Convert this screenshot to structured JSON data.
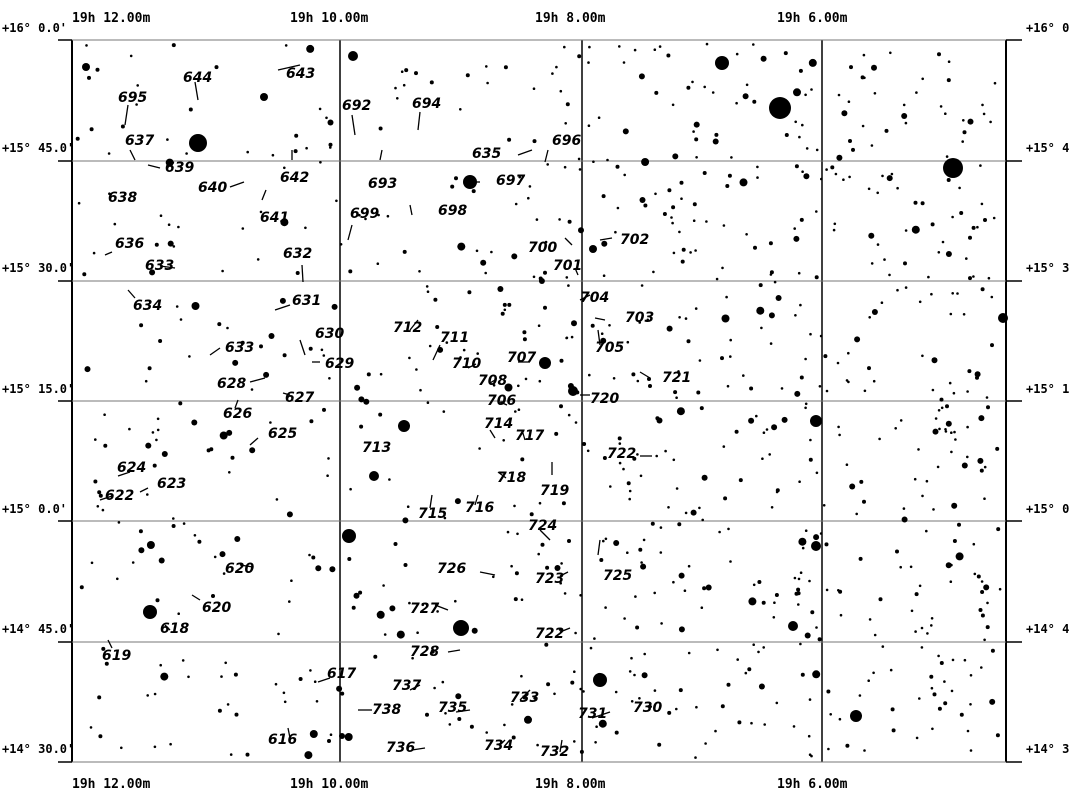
{
  "chart": {
    "type": "star-chart",
    "ra_labels": [
      "19h 12.00m",
      "19h 10.00m",
      "19h 8.00m",
      "19h 6.00m"
    ],
    "dec_labels": [
      "+16° 0.0'",
      "+15° 45.0'",
      "+15° 30.0'",
      "+15° 15.0'",
      "+15° 0.0'",
      "+14° 45.0'",
      "+14° 30.0'"
    ],
    "star_numbers": [
      "644",
      "643",
      "695",
      "692",
      "694",
      "696",
      "637",
      "639",
      "638",
      "640",
      "642",
      "641",
      "693",
      "635",
      "697",
      "699",
      "698",
      "636",
      "632",
      "702",
      "700",
      "633",
      "634",
      "631",
      "701",
      "704",
      "703",
      "712",
      "711",
      "705",
      "630",
      "633",
      "629",
      "710",
      "707",
      "721",
      "628",
      "627",
      "708",
      "706",
      "720",
      "626",
      "625",
      "714",
      "717",
      "713",
      "722",
      "624",
      "623",
      "718",
      "719",
      "622",
      "715",
      "716",
      "724",
      "620",
      "726",
      "723",
      "725",
      "620",
      "727",
      "618",
      "722",
      "619",
      "728",
      "617",
      "737",
      "733",
      "738",
      "735",
      "731",
      "730",
      "616",
      "736",
      "734",
      "732"
    ]
  },
  "colors": {
    "background": "#ffffff",
    "ink": "#000000"
  }
}
